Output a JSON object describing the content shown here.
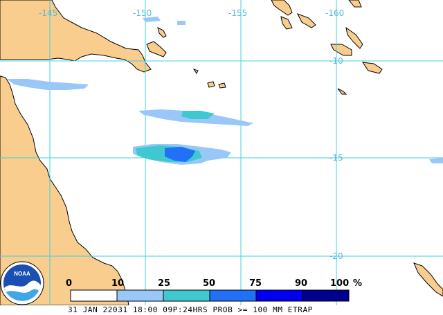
{
  "map": {
    "longitude_labels": [
      "-145",
      "-150",
      "-155",
      "-160"
    ],
    "latitude_labels": [
      "-10",
      "-15",
      "-20"
    ],
    "colors": {
      "land": "#f8cd8e",
      "coast": "#000000",
      "grid": "#40d0e0",
      "ocean": "#ffffff"
    }
  },
  "legend": {
    "ticks": [
      "0",
      "10",
      "25",
      "50",
      "75",
      "90",
      "100",
      "%"
    ],
    "bins": [
      {
        "range": "0-10",
        "color": "#ffffff"
      },
      {
        "range": "10-25",
        "color": "#99c8f8"
      },
      {
        "range": "25-50",
        "color": "#40c8d0"
      },
      {
        "range": "50-75",
        "color": "#2070f8"
      },
      {
        "range": "75-90",
        "color": "#0000f0"
      },
      {
        "range": "90-100",
        "color": "#000090"
      }
    ]
  },
  "logo": {
    "text": "NOAA"
  },
  "footer": {
    "caption": "31 JAN 22031 18:00 09P:24HRS PROB >= 100 MM ETRAP"
  }
}
